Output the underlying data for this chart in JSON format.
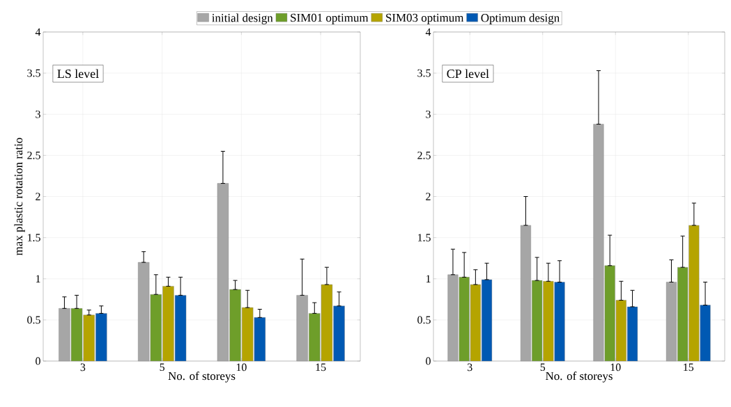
{
  "chart_data": [
    {
      "type": "bar",
      "categories": [
        "3",
        "5",
        "10",
        "15"
      ],
      "xlabel": "No. of storeys",
      "ylabel": "max plastic rotation ratio",
      "ylim": [
        0,
        4
      ],
      "yticks": [
        0,
        0.5,
        1,
        1.5,
        2,
        2.5,
        3,
        3.5,
        4
      ],
      "grid": true,
      "legend": "top",
      "annotations": [
        "LS level"
      ],
      "series": [
        {
          "name": "initial design",
          "color": "#a6a6a6",
          "values": [
            0.64,
            1.2,
            2.16,
            0.8
          ],
          "errors": [
            [
              0.64,
              0.78
            ],
            [
              1.2,
              1.33
            ],
            [
              2.16,
              2.55
            ],
            [
              0.8,
              1.24
            ]
          ]
        },
        {
          "name": "SIM01 optimum",
          "color": "#6e9e2a",
          "values": [
            0.64,
            0.81,
            0.87,
            0.58
          ],
          "errors": [
            [
              0.64,
              0.8
            ],
            [
              0.81,
              1.05
            ],
            [
              0.87,
              0.98
            ],
            [
              0.58,
              0.71
            ]
          ]
        },
        {
          "name": "SIM03 optimum",
          "color": "#b5a400",
          "values": [
            0.56,
            0.91,
            0.65,
            0.93
          ],
          "errors": [
            [
              0.56,
              0.62
            ],
            [
              0.91,
              1.02
            ],
            [
              0.65,
              0.86
            ],
            [
              0.93,
              1.14
            ]
          ]
        },
        {
          "name": "Optimum design",
          "color": "#0059b3",
          "values": [
            0.58,
            0.8,
            0.53,
            0.67
          ],
          "errors": [
            [
              0.58,
              0.67
            ],
            [
              0.8,
              1.02
            ],
            [
              0.53,
              0.63
            ],
            [
              0.67,
              0.84
            ]
          ]
        }
      ]
    },
    {
      "type": "bar",
      "categories": [
        "3",
        "5",
        "10",
        "15"
      ],
      "xlabel": "No. of storeys",
      "ylim": [
        0,
        4
      ],
      "yticks": [
        0,
        0.5,
        1,
        1.5,
        2,
        2.5,
        3,
        3.5,
        4
      ],
      "grid": true,
      "annotations": [
        "CP level"
      ],
      "series": [
        {
          "color": "#a6a6a6",
          "values": [
            1.05,
            1.65,
            2.88,
            0.96
          ],
          "errors": [
            [
              1.05,
              1.36
            ],
            [
              1.65,
              2.0
            ],
            [
              2.88,
              3.53
            ],
            [
              0.96,
              1.23
            ]
          ]
        },
        {
          "color": "#6e9e2a",
          "values": [
            1.02,
            0.98,
            1.16,
            1.14
          ],
          "errors": [
            [
              1.02,
              1.32
            ],
            [
              0.98,
              1.26
            ],
            [
              1.16,
              1.53
            ],
            [
              1.14,
              1.52
            ]
          ]
        },
        {
          "color": "#b5a400",
          "values": [
            0.93,
            0.97,
            0.74,
            1.65
          ],
          "errors": [
            [
              0.93,
              1.11
            ],
            [
              0.97,
              1.19
            ],
            [
              0.74,
              0.97
            ],
            [
              1.65,
              1.92
            ]
          ]
        },
        {
          "color": "#0059b3",
          "values": [
            0.99,
            0.96,
            0.66,
            0.68
          ],
          "errors": [
            [
              0.99,
              1.19
            ],
            [
              0.96,
              1.22
            ],
            [
              0.66,
              0.86
            ],
            [
              0.68,
              0.96
            ]
          ]
        }
      ]
    }
  ]
}
